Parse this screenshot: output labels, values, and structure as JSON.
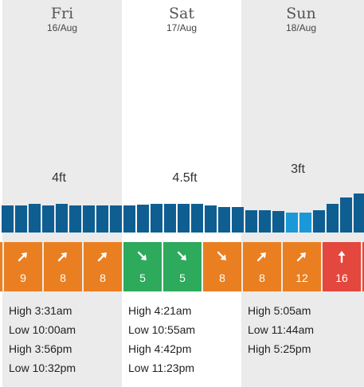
{
  "colors": {
    "bar_dark": "#0f5e92",
    "bar_light": "#1a98d8",
    "wind_orange": "#ea7f22",
    "wind_green": "#2daa5c",
    "wind_red": "#e4473d",
    "column_shade": "#ebebeb"
  },
  "days": [
    {
      "name": "Fri",
      "date": "16/Aug",
      "height": "4ft",
      "tides": [
        "High 3:31am",
        "Low 10:00am",
        "High 3:56pm",
        "Low 10:32pm"
      ]
    },
    {
      "name": "Sat",
      "date": "17/Aug",
      "height": "4.5ft",
      "tides": [
        "High 4:21am",
        "Low 10:55am",
        "High 4:42pm",
        "Low 11:23pm"
      ]
    },
    {
      "name": "Sun",
      "date": "18/Aug",
      "height": "3ft",
      "tides": [
        "High 5:05am",
        "Low 11:44am",
        "High 5:25pm"
      ]
    }
  ],
  "wave_bars": [
    {
      "level": 0.48,
      "shade": "dark"
    },
    {
      "level": 0.48,
      "shade": "dark"
    },
    {
      "level": 0.52,
      "shade": "dark"
    },
    {
      "level": 0.48,
      "shade": "dark"
    },
    {
      "level": 0.52,
      "shade": "dark"
    },
    {
      "level": 0.48,
      "shade": "dark"
    },
    {
      "level": 0.48,
      "shade": "dark"
    },
    {
      "level": 0.48,
      "shade": "dark"
    },
    {
      "level": 0.48,
      "shade": "dark"
    },
    {
      "level": 0.48,
      "shade": "dark"
    },
    {
      "level": 0.5,
      "shade": "dark"
    },
    {
      "level": 0.52,
      "shade": "dark"
    },
    {
      "level": 0.52,
      "shade": "dark"
    },
    {
      "level": 0.52,
      "shade": "dark"
    },
    {
      "level": 0.52,
      "shade": "dark"
    },
    {
      "level": 0.48,
      "shade": "dark"
    },
    {
      "level": 0.45,
      "shade": "dark"
    },
    {
      "level": 0.45,
      "shade": "dark"
    },
    {
      "level": 0.4,
      "shade": "dark"
    },
    {
      "level": 0.4,
      "shade": "dark"
    },
    {
      "level": 0.38,
      "shade": "dark"
    },
    {
      "level": 0.35,
      "shade": "light"
    },
    {
      "level": 0.35,
      "shade": "light"
    },
    {
      "level": 0.4,
      "shade": "dark"
    },
    {
      "level": 0.52,
      "shade": "dark"
    },
    {
      "level": 0.63,
      "shade": "dark"
    },
    {
      "level": 0.7,
      "shade": "dark"
    }
  ],
  "wind": [
    {
      "speed": "9",
      "dir": "ne",
      "color": "orange"
    },
    {
      "speed": "8",
      "dir": "ne",
      "color": "orange"
    },
    {
      "speed": "8",
      "dir": "ne",
      "color": "orange"
    },
    {
      "speed": "5",
      "dir": "se",
      "color": "green"
    },
    {
      "speed": "5",
      "dir": "se",
      "color": "green"
    },
    {
      "speed": "8",
      "dir": "se",
      "color": "orange"
    },
    {
      "speed": "8",
      "dir": "ne",
      "color": "orange"
    },
    {
      "speed": "12",
      "dir": "ne",
      "color": "orange"
    },
    {
      "speed": "16",
      "dir": "n",
      "color": "red"
    }
  ]
}
